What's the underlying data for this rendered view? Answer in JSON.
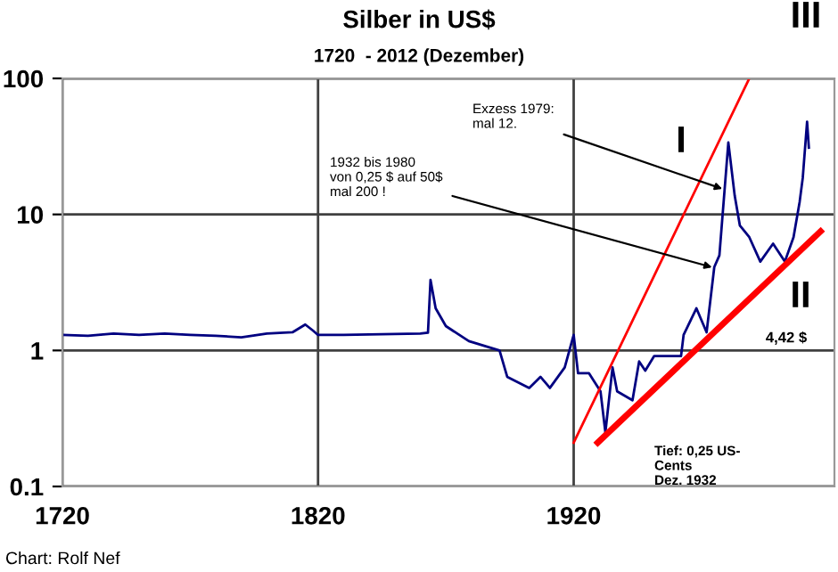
{
  "chart_data": {
    "type": "line",
    "title": "Silber in US$",
    "subtitle": "1720  - 2012 (Dezember)",
    "log": "y",
    "ylim": [
      0.1,
      100
    ],
    "yticks": [
      0.1,
      1,
      10,
      100
    ],
    "xlim": [
      1720,
      2022
    ],
    "xticks": [
      1720,
      1820,
      1920
    ],
    "grid": true,
    "legend": false,
    "marker": "none",
    "series": [
      {
        "color": "#000080",
        "x": [
          1720,
          1730,
          1740,
          1750,
          1760,
          1770,
          1780,
          1790,
          1800,
          1810,
          1815,
          1818,
          1820,
          1830,
          1840,
          1850,
          1860,
          1863,
          1864,
          1866,
          1870,
          1879,
          1891,
          1894,
          1902.6,
          1907,
          1910.7,
          1916.5,
          1920,
          1921.7,
          1926,
          1930.5,
          1932.4,
          1935.2,
          1937,
          1943,
          1945.6,
          1948,
          1951.5,
          1962,
          1963,
          1968,
          1972,
          1975,
          1977,
          1980.5,
          1983,
          1985,
          1988.7,
          1993,
          1998,
          2002.6,
          2006,
          2008.4,
          2009.6,
          2011.3,
          2012
        ],
        "values": [
          1.3,
          1.28,
          1.33,
          1.3,
          1.33,
          1.3,
          1.28,
          1.25,
          1.33,
          1.36,
          1.55,
          1.4,
          1.3,
          1.3,
          1.31,
          1.32,
          1.33,
          1.35,
          3.3,
          2.04,
          1.51,
          1.17,
          1.0,
          0.64,
          0.53,
          0.64,
          0.53,
          0.75,
          1.3,
          0.68,
          0.68,
          0.5,
          0.25,
          0.75,
          0.5,
          0.43,
          0.83,
          0.71,
          0.91,
          0.91,
          1.3,
          2.04,
          1.36,
          4.1,
          5.0,
          33.8,
          13.7,
          8.3,
          6.8,
          4.5,
          6.1,
          4.5,
          6.8,
          12.4,
          18.5,
          48,
          31
        ]
      },
      {
        "type": "line",
        "color": "#ff0000",
        "x": [
          1920,
          1988.7
        ],
        "values": [
          0.21,
          100
        ]
      },
      {
        "type": "line",
        "color": "#ff0000",
        "x": [
          1929.4,
          2016.6
        ],
        "values": [
          0.21,
          7.5
        ]
      }
    ],
    "annotations": [
      {
        "text": "1932 bis 1980\nvon 0,25 $ auf 50$\nmal 200 !",
        "x": 1976,
        "y": 4
      },
      {
        "text": "Exzess 1979:\nmal 12.",
        "x": 1980,
        "y": 15
      },
      "I",
      "II",
      "III",
      "4,42 $",
      "Tief: 0,25 US-\nCents\nDez. 1932",
      "Chart: Rolf Nef"
    ]
  }
}
